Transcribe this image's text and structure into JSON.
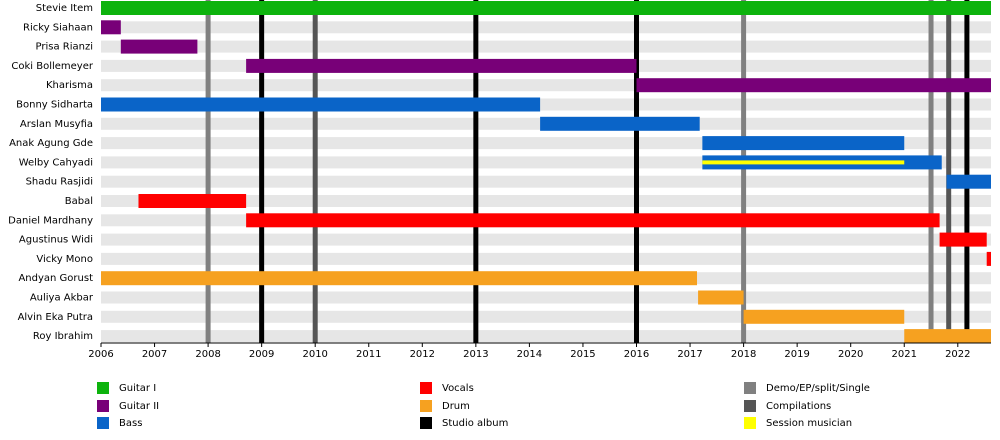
{
  "chart_data": {
    "type": "timeline",
    "xlim": [
      2006,
      2022.62
    ],
    "xticks": [
      2006,
      2007,
      2008,
      2009,
      2010,
      2011,
      2012,
      2013,
      2014,
      2015,
      2016,
      2017,
      2018,
      2019,
      2020,
      2021,
      2022
    ],
    "roles": [
      {
        "name": "Guitar I",
        "color": "#0db30d"
      },
      {
        "name": "Guitar II",
        "color": "#780078"
      },
      {
        "name": "Bass",
        "color": "#0a64c8"
      },
      {
        "name": "Vocals",
        "color": "#ff0000"
      },
      {
        "name": "Drum",
        "color": "#f6a120"
      },
      {
        "name": "Session musician",
        "color": "#ffff00"
      }
    ],
    "events": [
      {
        "name": "Studio album",
        "color": "#000000",
        "x": [
          2009,
          2013,
          2016,
          2022.17
        ]
      },
      {
        "name": "Demo/EP/split/Single",
        "color": "#808080",
        "x": [
          2008,
          2018,
          2021.5
        ]
      },
      {
        "name": "Compilations",
        "color": "#555555",
        "x": [
          2010,
          2021.83
        ]
      }
    ],
    "members": [
      {
        "name": "Stevie Item",
        "periods": [
          {
            "role": "Guitar I",
            "start": 2006,
            "end": 2022.62
          }
        ]
      },
      {
        "name": "Ricky Siahaan",
        "periods": [
          {
            "role": "Guitar II",
            "start": 2006,
            "end": 2006.37
          }
        ]
      },
      {
        "name": "Prisa Rianzi",
        "periods": [
          {
            "role": "Guitar II",
            "start": 2006.37,
            "end": 2007.8
          }
        ]
      },
      {
        "name": "Coki Bollemeyer",
        "periods": [
          {
            "role": "Guitar II",
            "start": 2008.71,
            "end": 2016
          }
        ]
      },
      {
        "name": "Kharisma",
        "periods": [
          {
            "role": "Guitar II",
            "start": 2016,
            "end": 2022.62
          }
        ]
      },
      {
        "name": "Bonny Sidharta",
        "periods": [
          {
            "role": "Bass",
            "start": 2006,
            "end": 2014.2
          }
        ]
      },
      {
        "name": "Arslan Musyfia",
        "periods": [
          {
            "role": "Bass",
            "start": 2014.2,
            "end": 2017.18
          }
        ]
      },
      {
        "name": "Anak Agung Gde",
        "periods": [
          {
            "role": "Bass",
            "start": 2017.23,
            "end": 2021
          }
        ]
      },
      {
        "name": "Welby Cahyadi",
        "periods": [
          {
            "role": "Bass",
            "start": 2017.23,
            "end": 2021.7
          },
          {
            "role": "Session musician",
            "start": 2017.23,
            "end": 2021
          }
        ]
      },
      {
        "name": "Shadu Rasjidi",
        "periods": [
          {
            "role": "Bass",
            "start": 2021.79,
            "end": 2022.62
          }
        ]
      },
      {
        "name": "Babal",
        "periods": [
          {
            "role": "Vocals",
            "start": 2006.7,
            "end": 2008.71
          }
        ]
      },
      {
        "name": "Daniel Mardhany",
        "periods": [
          {
            "role": "Vocals",
            "start": 2008.71,
            "end": 2021.66
          }
        ]
      },
      {
        "name": "Agustinus Widi",
        "periods": [
          {
            "role": "Vocals",
            "start": 2021.66,
            "end": 2022.54
          }
        ]
      },
      {
        "name": "Vicky Mono",
        "periods": [
          {
            "role": "Vocals",
            "start": 2022.54,
            "end": 2022.62
          }
        ]
      },
      {
        "name": "Andyan Gorust",
        "periods": [
          {
            "role": "Drum",
            "start": 2006,
            "end": 2017.13
          }
        ]
      },
      {
        "name": "Auliya Akbar",
        "periods": [
          {
            "role": "Drum",
            "start": 2017.15,
            "end": 2018
          }
        ]
      },
      {
        "name": "Alvin Eka Putra",
        "periods": [
          {
            "role": "Drum",
            "start": 2018,
            "end": 2021
          }
        ]
      },
      {
        "name": "Roy Ibrahim",
        "periods": [
          {
            "role": "Drum",
            "start": 2021,
            "end": 2022.62
          }
        ]
      }
    ]
  }
}
